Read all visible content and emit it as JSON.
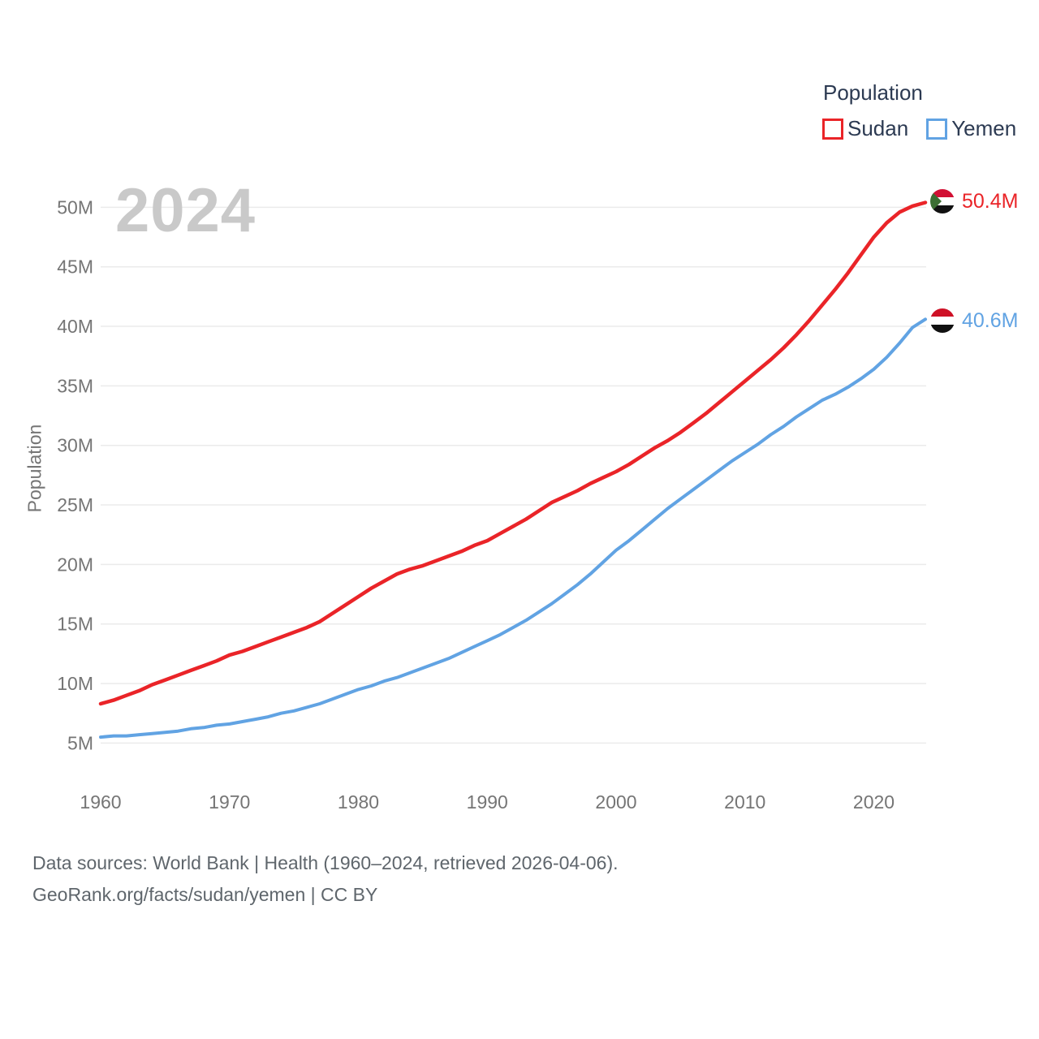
{
  "watermark": "2024",
  "legend": {
    "title": "Population",
    "items": [
      {
        "label": "Sudan",
        "color": "#ea2428",
        "icon": "sudan-series-swatch"
      },
      {
        "label": "Yemen",
        "color": "#61a3e3",
        "icon": "yemen-series-swatch"
      }
    ]
  },
  "end_markers": [
    {
      "series": "Sudan",
      "flag_icon": "sudan-flag-icon",
      "value_label": "50.4M",
      "color": "#ea2428"
    },
    {
      "series": "Yemen",
      "flag_icon": "yemen-flag-icon",
      "value_label": "40.6M",
      "color": "#61a3e3"
    }
  ],
  "chart_data": {
    "type": "line",
    "title": "",
    "xlabel": "",
    "ylabel": "Population",
    "unit": "millions of people",
    "grid": "horizontal",
    "legend_position": "top-right",
    "x_range": [
      1960,
      2024
    ],
    "ylim": [
      3,
      51.5
    ],
    "x_ticks": {
      "values": [
        1960,
        1970,
        1980,
        1990,
        2000,
        2010,
        2020
      ],
      "labels": [
        "1960",
        "1970",
        "1980",
        "1990",
        "2000",
        "2010",
        "2020"
      ]
    },
    "y_ticks": {
      "values": [
        5,
        10,
        15,
        20,
        25,
        30,
        35,
        40,
        45,
        50
      ],
      "labels": [
        "5M",
        "10M",
        "15M",
        "20M",
        "25M",
        "30M",
        "35M",
        "40M",
        "45M",
        "50M"
      ]
    },
    "x": [
      1960,
      1961,
      1962,
      1963,
      1964,
      1965,
      1966,
      1967,
      1968,
      1969,
      1970,
      1971,
      1972,
      1973,
      1974,
      1975,
      1976,
      1977,
      1978,
      1979,
      1980,
      1981,
      1982,
      1983,
      1984,
      1985,
      1986,
      1987,
      1988,
      1989,
      1990,
      1991,
      1992,
      1993,
      1994,
      1995,
      1996,
      1997,
      1998,
      1999,
      2000,
      2001,
      2002,
      2003,
      2004,
      2005,
      2006,
      2007,
      2008,
      2009,
      2010,
      2011,
      2012,
      2013,
      2014,
      2015,
      2016,
      2017,
      2018,
      2019,
      2020,
      2021,
      2022,
      2023,
      2024
    ],
    "series": [
      {
        "name": "Sudan",
        "color": "#ea2428",
        "end_label": "50.4M",
        "end_value": 50.4,
        "values": [
          8.3,
          8.6,
          9.0,
          9.4,
          9.9,
          10.3,
          10.7,
          11.1,
          11.5,
          11.9,
          12.4,
          12.7,
          13.1,
          13.5,
          13.9,
          14.3,
          14.7,
          15.2,
          15.9,
          16.6,
          17.3,
          18.0,
          18.6,
          19.2,
          19.6,
          19.9,
          20.3,
          20.7,
          21.1,
          21.6,
          22.0,
          22.6,
          23.2,
          23.8,
          24.5,
          25.2,
          25.7,
          26.2,
          26.8,
          27.3,
          27.8,
          28.4,
          29.1,
          29.8,
          30.4,
          31.1,
          31.9,
          32.7,
          33.6,
          34.5,
          35.4,
          36.3,
          37.2,
          38.2,
          39.3,
          40.5,
          41.8,
          43.1,
          44.5,
          46.0,
          47.5,
          48.7,
          49.6,
          50.1,
          50.4
        ]
      },
      {
        "name": "Yemen",
        "color": "#61a3e3",
        "end_label": "40.6M",
        "end_value": 40.6,
        "values": [
          5.5,
          5.6,
          5.6,
          5.7,
          5.8,
          5.9,
          6.0,
          6.2,
          6.3,
          6.5,
          6.6,
          6.8,
          7.0,
          7.2,
          7.5,
          7.7,
          8.0,
          8.3,
          8.7,
          9.1,
          9.5,
          9.8,
          10.2,
          10.5,
          10.9,
          11.3,
          11.7,
          12.1,
          12.6,
          13.1,
          13.6,
          14.1,
          14.7,
          15.3,
          16.0,
          16.7,
          17.5,
          18.3,
          19.2,
          20.2,
          21.2,
          22.0,
          22.9,
          23.8,
          24.7,
          25.5,
          26.3,
          27.1,
          27.9,
          28.7,
          29.4,
          30.1,
          30.9,
          31.6,
          32.4,
          33.1,
          33.8,
          34.3,
          34.9,
          35.6,
          36.4,
          37.4,
          38.6,
          39.9,
          40.6
        ]
      }
    ]
  },
  "footer": {
    "line1": "Data sources: World Bank | Health (1960–2024, retrieved 2026-04-06).",
    "line2": "GeoRank.org/facts/sudan/yemen | CC BY"
  }
}
